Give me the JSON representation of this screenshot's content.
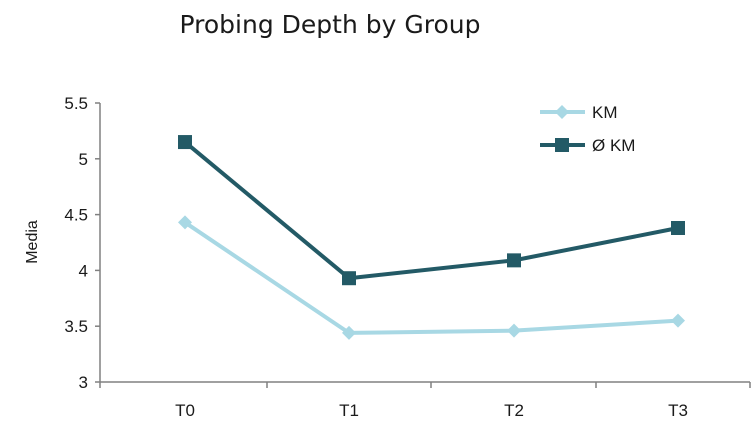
{
  "chart_data": {
    "type": "line",
    "title": "Probing Depth by Group",
    "xlabel": "",
    "ylabel": "Media",
    "categories": [
      "T0",
      "T1",
      "T2",
      "T3"
    ],
    "ylim": [
      3,
      5.5
    ],
    "yticks": [
      "3",
      "3.5",
      "4",
      "4.5",
      "5",
      "5.5"
    ],
    "grid": false,
    "legend_position": "top-right",
    "series": [
      {
        "name": "KM",
        "values": [
          4.43,
          3.44,
          3.46,
          3.55
        ],
        "color": "#a8d8e4",
        "marker": "diamond"
      },
      {
        "name": "Ø KM",
        "values": [
          5.15,
          3.93,
          4.09,
          4.38
        ],
        "color": "#235a66",
        "marker": "square"
      }
    ]
  }
}
